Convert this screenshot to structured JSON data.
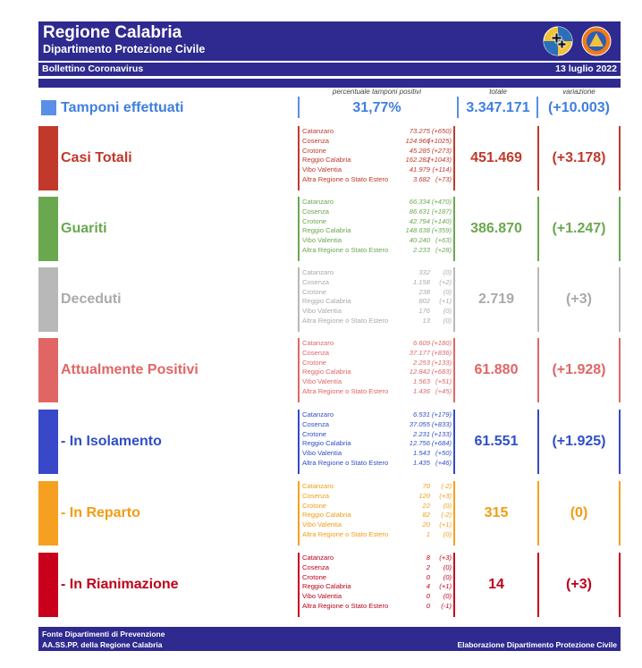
{
  "header": {
    "title": "Regione Calabria",
    "subtitle": "Dipartimento Protezione Civile",
    "bulletin": "Bollettino Coronavirus",
    "date": "13 luglio 2022"
  },
  "columns": {
    "positivity": "percentuale tamponi positivi",
    "total": "totale",
    "variation": "variazione"
  },
  "tamponi": {
    "label": "Tamponi effettuati",
    "positivity": "31,77%",
    "total": "3.347.171",
    "variation": "(+10.003)",
    "color": "#3f7fe0"
  },
  "rows": [
    {
      "title": "Casi Totali",
      "color": "#c0392b",
      "bar": "#c0392b",
      "total": "451.469",
      "variation": "(+3.178)",
      "provinces": [
        {
          "name": "Catanzaro",
          "value": "73.275",
          "delta": "(+650)"
        },
        {
          "name": "Cosenza",
          "value": "124.966",
          "delta": "(+1025)"
        },
        {
          "name": "Crotone",
          "value": "45.285",
          "delta": "(+273)"
        },
        {
          "name": "Reggio Calabria",
          "value": "162.282",
          "delta": "(+1043)"
        },
        {
          "name": "Vibo Valentia",
          "value": "41.979",
          "delta": "(+114)"
        },
        {
          "name": "Altra Regione o Stato Estero",
          "value": "3.682",
          "delta": "(+73)"
        }
      ]
    },
    {
      "title": "Guariti",
      "color": "#6aa84f",
      "bar": "#6aa84f",
      "total": "386.870",
      "variation": "(+1.247)",
      "provinces": [
        {
          "name": "Catanzaro",
          "value": "66.334",
          "delta": "(+470)"
        },
        {
          "name": "Cosenza",
          "value": "86.631",
          "delta": "(+187)"
        },
        {
          "name": "Crotone",
          "value": "42.794",
          "delta": "(+140)"
        },
        {
          "name": "Reggio Calabria",
          "value": "148.638",
          "delta": "(+359)"
        },
        {
          "name": "Vibo Valentia",
          "value": "40.240",
          "delta": "(+63)"
        },
        {
          "name": "Altra Regione o Stato Estero",
          "value": "2.233",
          "delta": "(+28)"
        }
      ]
    },
    {
      "title": "Deceduti",
      "color": "#aaaaaa",
      "bar": "#b8b8b8",
      "total": "2.719",
      "variation": "(+3)",
      "provinces": [
        {
          "name": "Catanzaro",
          "value": "332",
          "delta": "(0)"
        },
        {
          "name": "Cosenza",
          "value": "1.158",
          "delta": "(+2)"
        },
        {
          "name": "Crotone",
          "value": "238",
          "delta": "(0)"
        },
        {
          "name": "Reggio Calabria",
          "value": "802",
          "delta": "(+1)"
        },
        {
          "name": "Vibo Valentia",
          "value": "176",
          "delta": "(0)"
        },
        {
          "name": "Altra Regione o Stato Estero",
          "value": "13",
          "delta": "(0)"
        }
      ]
    },
    {
      "title": "Attualmente Positivi",
      "color": "#e06666",
      "bar": "#e06666",
      "total": "61.880",
      "variation": "(+1.928)",
      "provinces": [
        {
          "name": "Catanzaro",
          "value": "6.609",
          "delta": "(+180)"
        },
        {
          "name": "Cosenza",
          "value": "37.177",
          "delta": "(+836)"
        },
        {
          "name": "Crotone",
          "value": "2.253",
          "delta": "(+133)"
        },
        {
          "name": "Reggio Calabria",
          "value": "12.842",
          "delta": "(+683)"
        },
        {
          "name": "Vibo Valentia",
          "value": "1.563",
          "delta": "(+51)"
        },
        {
          "name": "Altra Regione o Stato Estero",
          "value": "1.436",
          "delta": "(+45)"
        }
      ]
    },
    {
      "title": "- In Isolamento",
      "color": "#2f4fc7",
      "bar": "#3848c8",
      "total": "61.551",
      "variation": "(+1.925)",
      "provinces": [
        {
          "name": "Catanzaro",
          "value": "6.531",
          "delta": "(+179)"
        },
        {
          "name": "Cosenza",
          "value": "37.055",
          "delta": "(+833)"
        },
        {
          "name": "Crotone",
          "value": "2.231",
          "delta": "(+133)"
        },
        {
          "name": "Reggio Calabria",
          "value": "12.756",
          "delta": "(+684)"
        },
        {
          "name": "Vibo Valentia",
          "value": "1.543",
          "delta": "(+50)"
        },
        {
          "name": "Altra Regione o Stato Estero",
          "value": "1.435",
          "delta": "(+46)"
        }
      ]
    },
    {
      "title": "- In Reparto",
      "color": "#f39c12",
      "bar": "#f5a020",
      "total": "315",
      "variation": "(0)",
      "provinces": [
        {
          "name": "Catanzaro",
          "value": "70",
          "delta": "(-2)"
        },
        {
          "name": "Cosenza",
          "value": "120",
          "delta": "(+3)"
        },
        {
          "name": "Crotone",
          "value": "22",
          "delta": "(0)"
        },
        {
          "name": "Reggio Calabria",
          "value": "82",
          "delta": "(-2)"
        },
        {
          "name": "Vibo Valentia",
          "value": "20",
          "delta": "(+1)"
        },
        {
          "name": "Altra Regione o Stato Estero",
          "value": "1",
          "delta": "(0)"
        }
      ]
    },
    {
      "title": "- In Rianimazione",
      "color": "#c0001a",
      "bar": "#c8001c",
      "total": "14",
      "variation": "(+3)",
      "provinces": [
        {
          "name": "Catanzaro",
          "value": "8",
          "delta": "(+3)"
        },
        {
          "name": "Cosenza",
          "value": "2",
          "delta": "(0)"
        },
        {
          "name": "Crotone",
          "value": "0",
          "delta": "(0)"
        },
        {
          "name": "Reggio Calabria",
          "value": "4",
          "delta": "(+1)"
        },
        {
          "name": "Vibo Valentia",
          "value": "0",
          "delta": "(0)"
        },
        {
          "name": "Altra Regione o Stato Estero",
          "value": "0",
          "delta": "(-1)"
        }
      ]
    }
  ],
  "footer": {
    "line1": "Fonte Dipartimenti di Prevenzione",
    "line2": "AA.SS.PP.  della Regione Calabria",
    "credit": "Elaborazione Dipartimento Protezione Civile"
  }
}
